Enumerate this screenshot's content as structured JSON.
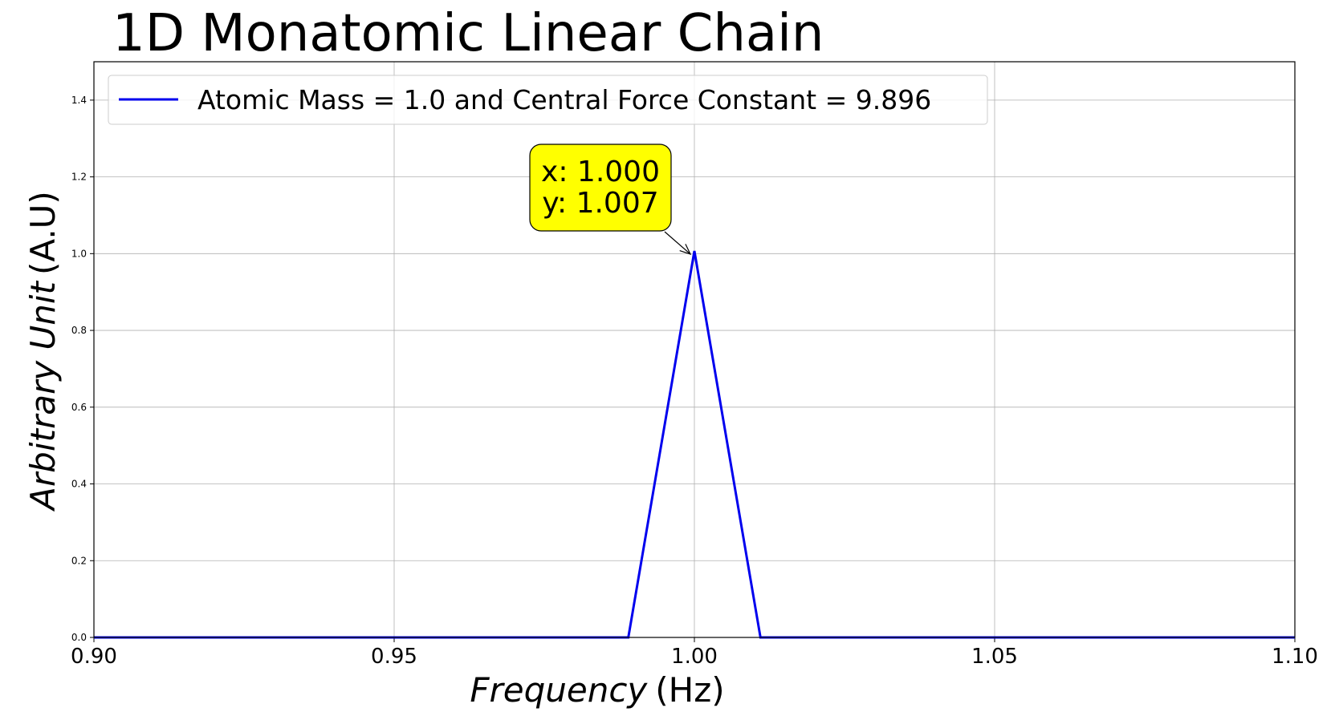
{
  "chart_data": {
    "type": "line",
    "title": "1D Monatomic Linear Chain",
    "xlabel": "Frequency",
    "xlabel_unit": "(Hz)",
    "ylabel": "Arbitrary Unit",
    "ylabel_unit": "(A.U)",
    "xlim": [
      0.9,
      1.1
    ],
    "ylim": [
      0,
      1.5
    ],
    "x_ticks": [
      0.9,
      0.95,
      1.0,
      1.05,
      1.1
    ],
    "x_tick_labels": [
      "0.90",
      "0.95",
      "1.00",
      "1.05",
      "1.10"
    ],
    "y_ticks": [
      0.0,
      0.2,
      0.4,
      0.6,
      0.8,
      1.0,
      1.2,
      1.4
    ],
    "y_tick_labels": [
      "0.0",
      "0.2",
      "0.4",
      "0.6",
      "0.8",
      "1.0",
      "1.2",
      "1.4"
    ],
    "grid": true,
    "legend_position": "top-left",
    "series": [
      {
        "name": "Atomic Mass = 1.0 and Central Force Constant = 9.896",
        "color": "#0000ee",
        "x": [
          0.9,
          0.989,
          1.0,
          1.011,
          1.1
        ],
        "y": [
          0.0,
          0.0,
          1.007,
          0.0,
          0.0
        ]
      }
    ],
    "annotation": {
      "x_text": "x: 1.000",
      "y_text": "y: 1.007",
      "x": 1.0,
      "y": 1.007,
      "box_color": "#ffff00"
    }
  }
}
